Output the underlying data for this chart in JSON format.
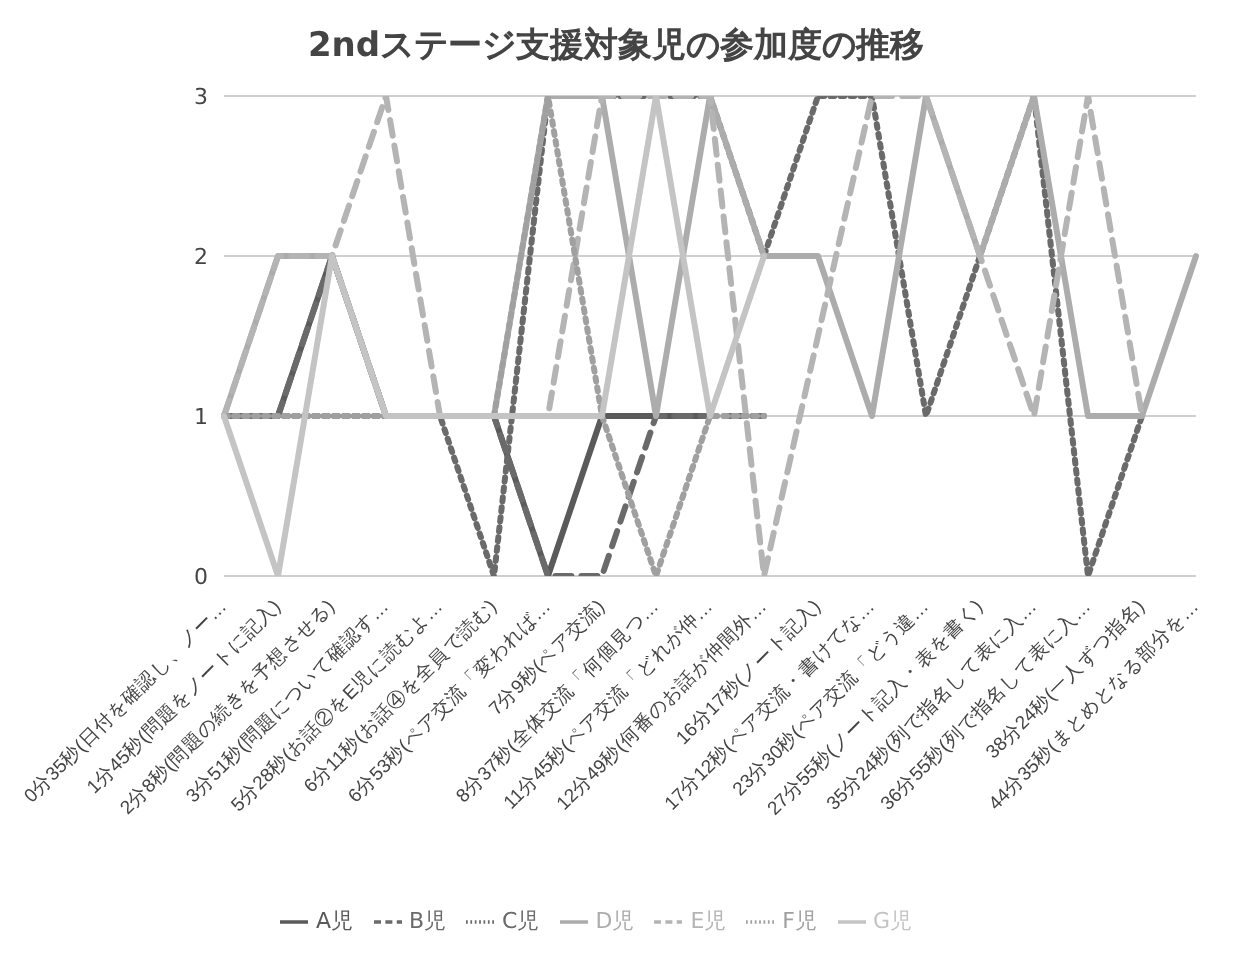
{
  "chart_data": {
    "type": "line",
    "title": "2ndステージ支援対象児の参加度の推移",
    "categories": [
      "0分35秒(日付を確認し、ノー…",
      "1分45秒(問題をノートに記入)",
      "2分8秒(問題の続きを予想させる)",
      "3分51秒(問題について確認す…",
      "5分28秒(お話②をE児に読むよ…",
      "6分11秒(お話④を全員で読む)",
      "6分53秒(ペア交流「変われば…",
      "7分9秒(ペア交流)",
      "8分37秒(全体交流「何個見つ…",
      "11分45秒(ペア交流「どれが仲…",
      "12分49秒(何番のお話が仲間外…",
      "16分17秒(ノート記入)",
      "17分12秒(ペア交流・書けてな…",
      "23分30秒(ペア交流「どう違…",
      "27分55秒(ノート記入・表を書く)",
      "35分24秒(列で指名して表に入…",
      "36分55秒(列で指名して表に入…",
      "38分24秒(一人ずつ指名)",
      "44分35秒(まとめとなる部分を…"
    ],
    "series": [
      {
        "name": "A児",
        "color": "#5a5a5a",
        "line_style": "solid",
        "values": [
          1,
          1,
          2,
          1,
          1,
          1,
          0,
          1,
          1,
          1,
          null,
          null,
          null,
          null,
          null,
          null,
          null,
          null,
          null
        ]
      },
      {
        "name": "B児",
        "color": "#6a6a6a",
        "line_style": "dashed",
        "values": [
          1,
          1,
          2,
          1,
          1,
          1,
          0,
          0,
          1,
          1,
          1,
          null,
          null,
          null,
          null,
          null,
          null,
          null,
          null
        ]
      },
      {
        "name": "C児",
        "color": "#6a6a6a",
        "line_style": "dotted",
        "values": [
          1,
          1,
          1,
          1,
          1,
          0,
          3,
          3,
          3,
          3,
          2,
          3,
          3,
          1,
          2,
          3,
          0,
          1,
          null
        ]
      },
      {
        "name": "D児",
        "color": "#acacac",
        "line_style": "solid",
        "values": [
          1,
          2,
          2,
          1,
          1,
          1,
          3,
          3,
          1,
          3,
          2,
          2,
          1,
          3,
          2,
          3,
          1,
          1,
          2
        ]
      },
      {
        "name": "E児",
        "color": "#b4b4b4",
        "line_style": "dashed",
        "values": [
          1,
          2,
          2,
          3,
          1,
          1,
          1,
          3,
          3,
          3,
          0,
          null,
          3,
          3,
          2,
          1,
          3,
          1,
          null
        ]
      },
      {
        "name": "F児",
        "color": "#a0a0a0",
        "line_style": "dotted",
        "values": [
          1,
          1,
          1,
          1,
          1,
          1,
          3,
          1,
          0,
          1,
          1,
          null,
          null,
          null,
          null,
          null,
          null,
          null,
          null
        ]
      },
      {
        "name": "G児",
        "color": "#c4c4c4",
        "line_style": "solid",
        "values": [
          1,
          0,
          2,
          1,
          1,
          1,
          1,
          1,
          3,
          1,
          2,
          null,
          null,
          null,
          null,
          null,
          null,
          null,
          null
        ]
      }
    ],
    "ylim": [
      0,
      3
    ],
    "yticks": [
      0,
      1,
      2,
      3
    ],
    "grid": "y",
    "legend": "bottom",
    "marker": "none"
  }
}
